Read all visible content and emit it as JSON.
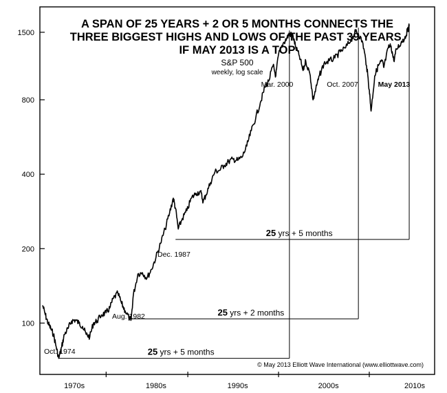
{
  "chart_data": {
    "type": "line",
    "title": "A SPAN OF 25 YEARS + 2 OR 5 MONTHS CONNECTS THE\nTHREE BIGGEST HIGHS AND LOWS OF THE PAST 39 YEARS,\nIF MAY 2013 IS A TOP",
    "subtitle": "S&P 500",
    "subtitle2": "weekly, log scale",
    "yscale": "log",
    "ylim": [
      62,
      1900
    ],
    "xlim": [
      1972.7,
      2016.2
    ],
    "yticks": [
      100,
      200,
      400,
      800,
      1500
    ],
    "ytick_labels": [
      "100",
      "200",
      "400",
      "800",
      "1500"
    ],
    "xtick_labels": [
      "1970s",
      "1980s",
      "1990s",
      "2000s",
      "2010s"
    ],
    "xtick_label_positions": [
      1976.5,
      1985.5,
      1994.5,
      2004.5,
      2014.0
    ],
    "xtick_marks": [
      1980.0,
      1989.0,
      1999.0,
      2009.0
    ],
    "series": [
      {
        "x": [
          1973.0,
          1973.3,
          1973.6,
          1973.9,
          1974.2,
          1974.5,
          1974.78,
          1975.1,
          1975.4,
          1975.8,
          1976.2,
          1976.6,
          1977.0,
          1977.4,
          1977.8,
          1978.2,
          1978.6,
          1979.0,
          1979.5,
          1980.0,
          1980.4,
          1980.8,
          1981.3,
          1981.7,
          1982.1,
          1982.6,
          1982.75,
          1983.0,
          1983.5,
          1984.0,
          1984.5,
          1985.0,
          1985.5,
          1986.0,
          1986.5,
          1987.0,
          1987.4,
          1987.65,
          1987.95,
          1988.4,
          1988.9,
          1989.4,
          1989.9,
          1990.4,
          1990.7,
          1991.0,
          1991.5,
          1992.0,
          1992.5,
          1993.0,
          1993.5,
          1994.0,
          1994.5,
          1995.0,
          1995.5,
          1996.0,
          1996.5,
          1997.0,
          1997.5,
          1997.9,
          1998.4,
          1998.7,
          1999.0,
          1999.5,
          1999.9,
          2000.2,
          2000.6,
          2000.9,
          2001.3,
          2001.7,
          2002.0,
          2002.5,
          2002.8,
          2003.1,
          2003.5,
          2004.0,
          2004.6,
          2005.2,
          2005.8,
          2006.4,
          2007.0,
          2007.5,
          2007.8,
          2008.3,
          2008.7,
          2009.0,
          2009.2,
          2009.6,
          2010.0,
          2010.4,
          2010.6,
          2011.1,
          2011.4,
          2011.7,
          2012.0,
          2012.5,
          2012.9,
          2013.2,
          2013.4
        ],
        "values": [
          118,
          108,
          100,
          95,
          90,
          80,
          72,
          80,
          90,
          95,
          102,
          103,
          100,
          97,
          90,
          88,
          100,
          102,
          108,
          110,
          115,
          126,
          132,
          120,
          112,
          104,
          103,
          130,
          158,
          160,
          152,
          165,
          185,
          210,
          240,
          280,
          320,
          290,
          240,
          265,
          285,
          320,
          335,
          340,
          310,
          330,
          370,
          410,
          415,
          435,
          450,
          460,
          455,
          470,
          520,
          600,
          680,
          780,
          900,
          950,
          1100,
          1000,
          1220,
          1350,
          1420,
          1480,
          1450,
          1300,
          1200,
          1050,
          1150,
          1000,
          800,
          880,
          1000,
          1120,
          1150,
          1180,
          1250,
          1300,
          1400,
          1510,
          1480,
          1350,
          1100,
          880,
          720,
          1000,
          1100,
          1150,
          1080,
          1300,
          1320,
          1150,
          1280,
          1360,
          1420,
          1520,
          1590
        ]
      }
    ],
    "connectors": [
      {
        "label_bold": "25",
        "label_rest": " yrs + 5 months",
        "from": [
          1974.78,
          72
        ],
        "to": [
          2000.2,
          72
        ],
        "up_to": 1525
      },
      {
        "label_bold": "25",
        "label_rest": " yrs + 2 months",
        "from": [
          1982.6,
          104
        ],
        "to": [
          2007.8,
          104
        ],
        "up_to": 1565
      },
      {
        "label_bold": "25",
        "label_rest": " yrs + 5 months",
        "from": [
          1987.65,
          218
        ],
        "to": [
          2013.4,
          218
        ],
        "up_to": 1590
      }
    ],
    "annotations": [
      {
        "text": "Oct. 1974",
        "bold": false
      },
      {
        "text": "Aug. 1982",
        "bold": false
      },
      {
        "text": "Dec. 1987",
        "bold": false
      },
      {
        "text": "Mar. 2000",
        "bold": false
      },
      {
        "text": "Oct. 2007",
        "bold": false
      },
      {
        "text": "May 2013",
        "bold": true
      }
    ],
    "copyright": "© May 2013 Elliott Wave International (www.elliottwave.com)"
  }
}
